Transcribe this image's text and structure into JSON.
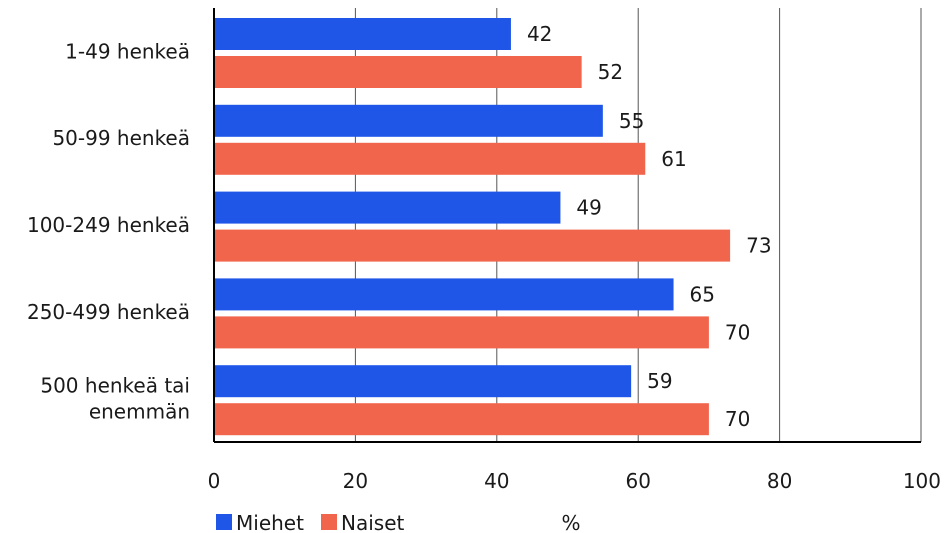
{
  "chart_data": {
    "type": "bar",
    "orientation": "horizontal",
    "categories": [
      [
        "1-49 henkeä"
      ],
      [
        "50-99 henkeä"
      ],
      [
        "100-249 henkeä"
      ],
      [
        "250-499 henkeä"
      ],
      [
        "500 henkeä tai",
        "enemmän"
      ]
    ],
    "series": [
      {
        "name": "Miehet",
        "color": "#1f56e8",
        "values": [
          42,
          55,
          49,
          65,
          59
        ]
      },
      {
        "name": "Naiset",
        "color": "#f2654d",
        "values": [
          52,
          61,
          73,
          70,
          70
        ]
      }
    ],
    "xlabel": "%",
    "xlim": [
      0,
      100
    ],
    "xticks": [
      0,
      20,
      40,
      60,
      80,
      100
    ],
    "grid": "vertical",
    "legend": "bottom-left"
  }
}
